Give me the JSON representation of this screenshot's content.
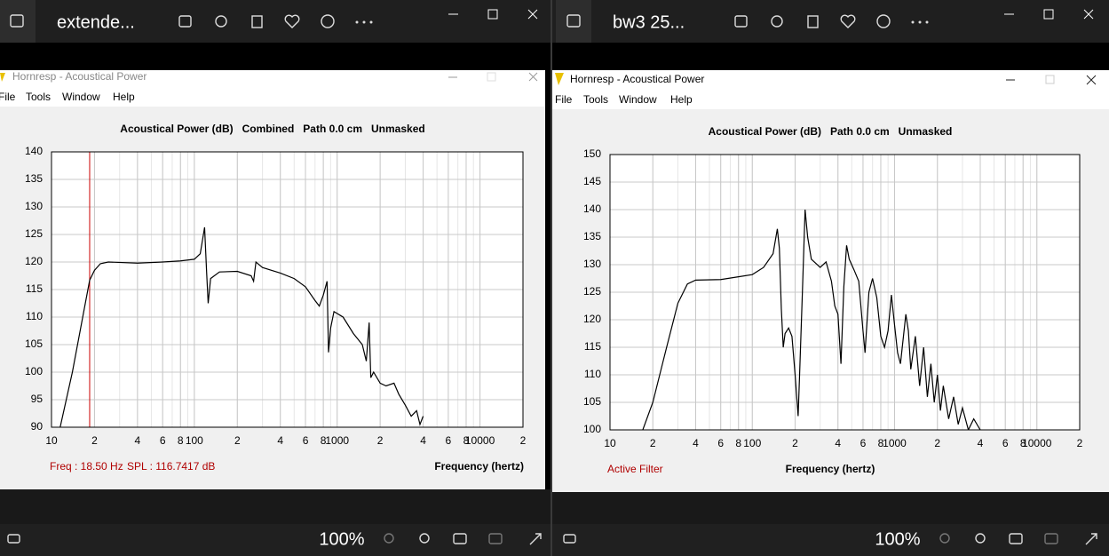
{
  "windows": [
    {
      "title": "extende...",
      "zoom": "100%",
      "app": {
        "title": "Hornresp - Acoustical Power",
        "menu": [
          "File",
          "Tools",
          "Window",
          "Help"
        ]
      }
    },
    {
      "title": "bw3 25...",
      "zoom": "100%",
      "app": {
        "title": "Hornresp - Acoustical Power",
        "menu": [
          "File",
          "Tools",
          "Window",
          "Help"
        ]
      }
    }
  ],
  "chart_data": [
    {
      "type": "line",
      "title": "Acoustical Power (dB)   Combined   Path 0.0 cm   Unmasked",
      "x_label": "Frequency (hertz)",
      "x_log": true,
      "grid": true,
      "color": "#000000",
      "xlim": [
        10,
        20000
      ],
      "ylim": [
        90,
        140
      ],
      "xticks": [
        10,
        {
          "value": 20,
          "label": "2"
        },
        {
          "value": 40,
          "label": "4"
        },
        {
          "value": 60,
          "label": "6"
        },
        {
          "value": 80,
          "label": "8"
        },
        100,
        {
          "value": 200,
          "label": "2"
        },
        {
          "value": 400,
          "label": "4"
        },
        {
          "value": 600,
          "label": "6"
        },
        {
          "value": 800,
          "label": "8"
        },
        1000,
        {
          "value": 2000,
          "label": "2"
        },
        {
          "value": 4000,
          "label": "4"
        },
        {
          "value": 6000,
          "label": "6"
        },
        {
          "value": 8000,
          "label": "8"
        },
        10000,
        {
          "value": 20000,
          "label": "2"
        }
      ],
      "yticks": [
        90,
        95,
        100,
        105,
        110,
        115,
        120,
        125,
        130,
        135,
        140
      ],
      "x": [
        11.5,
        14,
        16,
        18.5,
        20,
        22,
        25,
        40,
        60,
        80,
        100,
        110,
        118,
        122,
        125,
        130,
        150,
        200,
        250,
        260,
        270,
        300,
        400,
        500,
        600,
        700,
        750,
        800,
        850,
        870,
        900,
        950,
        1100,
        1300,
        1500,
        1600,
        1675,
        1720,
        1800,
        2000,
        2200,
        2500,
        2700,
        3000,
        3300,
        3600,
        3800,
        4000
      ],
      "values": [
        90,
        100,
        108,
        116.7,
        118.5,
        119.7,
        120,
        119.8,
        120,
        120.2,
        120.5,
        121.5,
        126.3,
        118,
        112.5,
        117,
        118.2,
        118.3,
        117.5,
        116.5,
        120,
        119,
        118,
        117,
        115.5,
        113,
        112,
        114,
        116.5,
        103.6,
        108,
        111,
        110,
        107,
        105,
        102,
        109,
        99,
        100,
        98,
        97.5,
        98,
        96,
        94,
        92,
        93,
        90.5,
        92
      ],
      "cursor": {
        "value": 18.5,
        "label": "Freq : 18.50 Hz",
        "color": "#cc0000"
      },
      "annotations": [
        "SPL : 116.7417 dB"
      ]
    },
    {
      "type": "line",
      "title": "Acoustical Power (dB)   Path 0.0 cm   Unmasked",
      "x_label": "Frequency (hertz)",
      "x_log": true,
      "grid": true,
      "color": "#000000",
      "xlim": [
        10,
        20000
      ],
      "ylim": [
        100,
        150
      ],
      "xticks": [
        10,
        {
          "value": 20,
          "label": "2"
        },
        {
          "value": 40,
          "label": "4"
        },
        {
          "value": 60,
          "label": "6"
        },
        {
          "value": 80,
          "label": "8"
        },
        100,
        {
          "value": 200,
          "label": "2"
        },
        {
          "value": 400,
          "label": "4"
        },
        {
          "value": 600,
          "label": "6"
        },
        {
          "value": 800,
          "label": "8"
        },
        1000,
        {
          "value": 2000,
          "label": "2"
        },
        {
          "value": 4000,
          "label": "4"
        },
        {
          "value": 6000,
          "label": "6"
        },
        {
          "value": 8000,
          "label": "8"
        },
        10000,
        {
          "value": 20000,
          "label": "2"
        }
      ],
      "yticks": [
        100,
        105,
        110,
        115,
        120,
        125,
        130,
        135,
        140,
        145,
        150
      ],
      "x": [
        17,
        20,
        25,
        30,
        35,
        40,
        60,
        80,
        100,
        120,
        140,
        150,
        155,
        160,
        165,
        170,
        180,
        190,
        200,
        210,
        215,
        225,
        235,
        245,
        260,
        300,
        330,
        360,
        380,
        400,
        420,
        440,
        460,
        480,
        520,
        560,
        600,
        620,
        660,
        700,
        750,
        800,
        850,
        900,
        950,
        1000,
        1050,
        1100,
        1200,
        1250,
        1300,
        1400,
        1500,
        1600,
        1700,
        1800,
        1900,
        2000,
        2100,
        2200,
        2400,
        2600,
        2800,
        3000,
        3300,
        3600,
        4000
      ],
      "values": [
        100,
        105,
        115,
        123,
        126.5,
        127.2,
        127.3,
        127.8,
        128.2,
        129.5,
        132,
        136.5,
        133,
        122,
        115,
        117.5,
        118.5,
        117,
        110,
        102.5,
        110,
        125,
        140,
        135,
        131,
        129.5,
        130.5,
        127,
        122.5,
        121,
        112,
        126,
        133.5,
        131,
        129,
        127,
        118,
        114,
        125,
        127.5,
        124,
        117,
        115,
        118,
        124.5,
        119,
        114,
        112,
        121,
        118,
        111,
        117,
        108,
        115,
        106,
        112,
        105,
        110,
        103.5,
        108,
        102,
        106,
        101,
        104,
        100,
        102,
        100
      ],
      "annotations": [
        "Active Filter"
      ]
    }
  ]
}
